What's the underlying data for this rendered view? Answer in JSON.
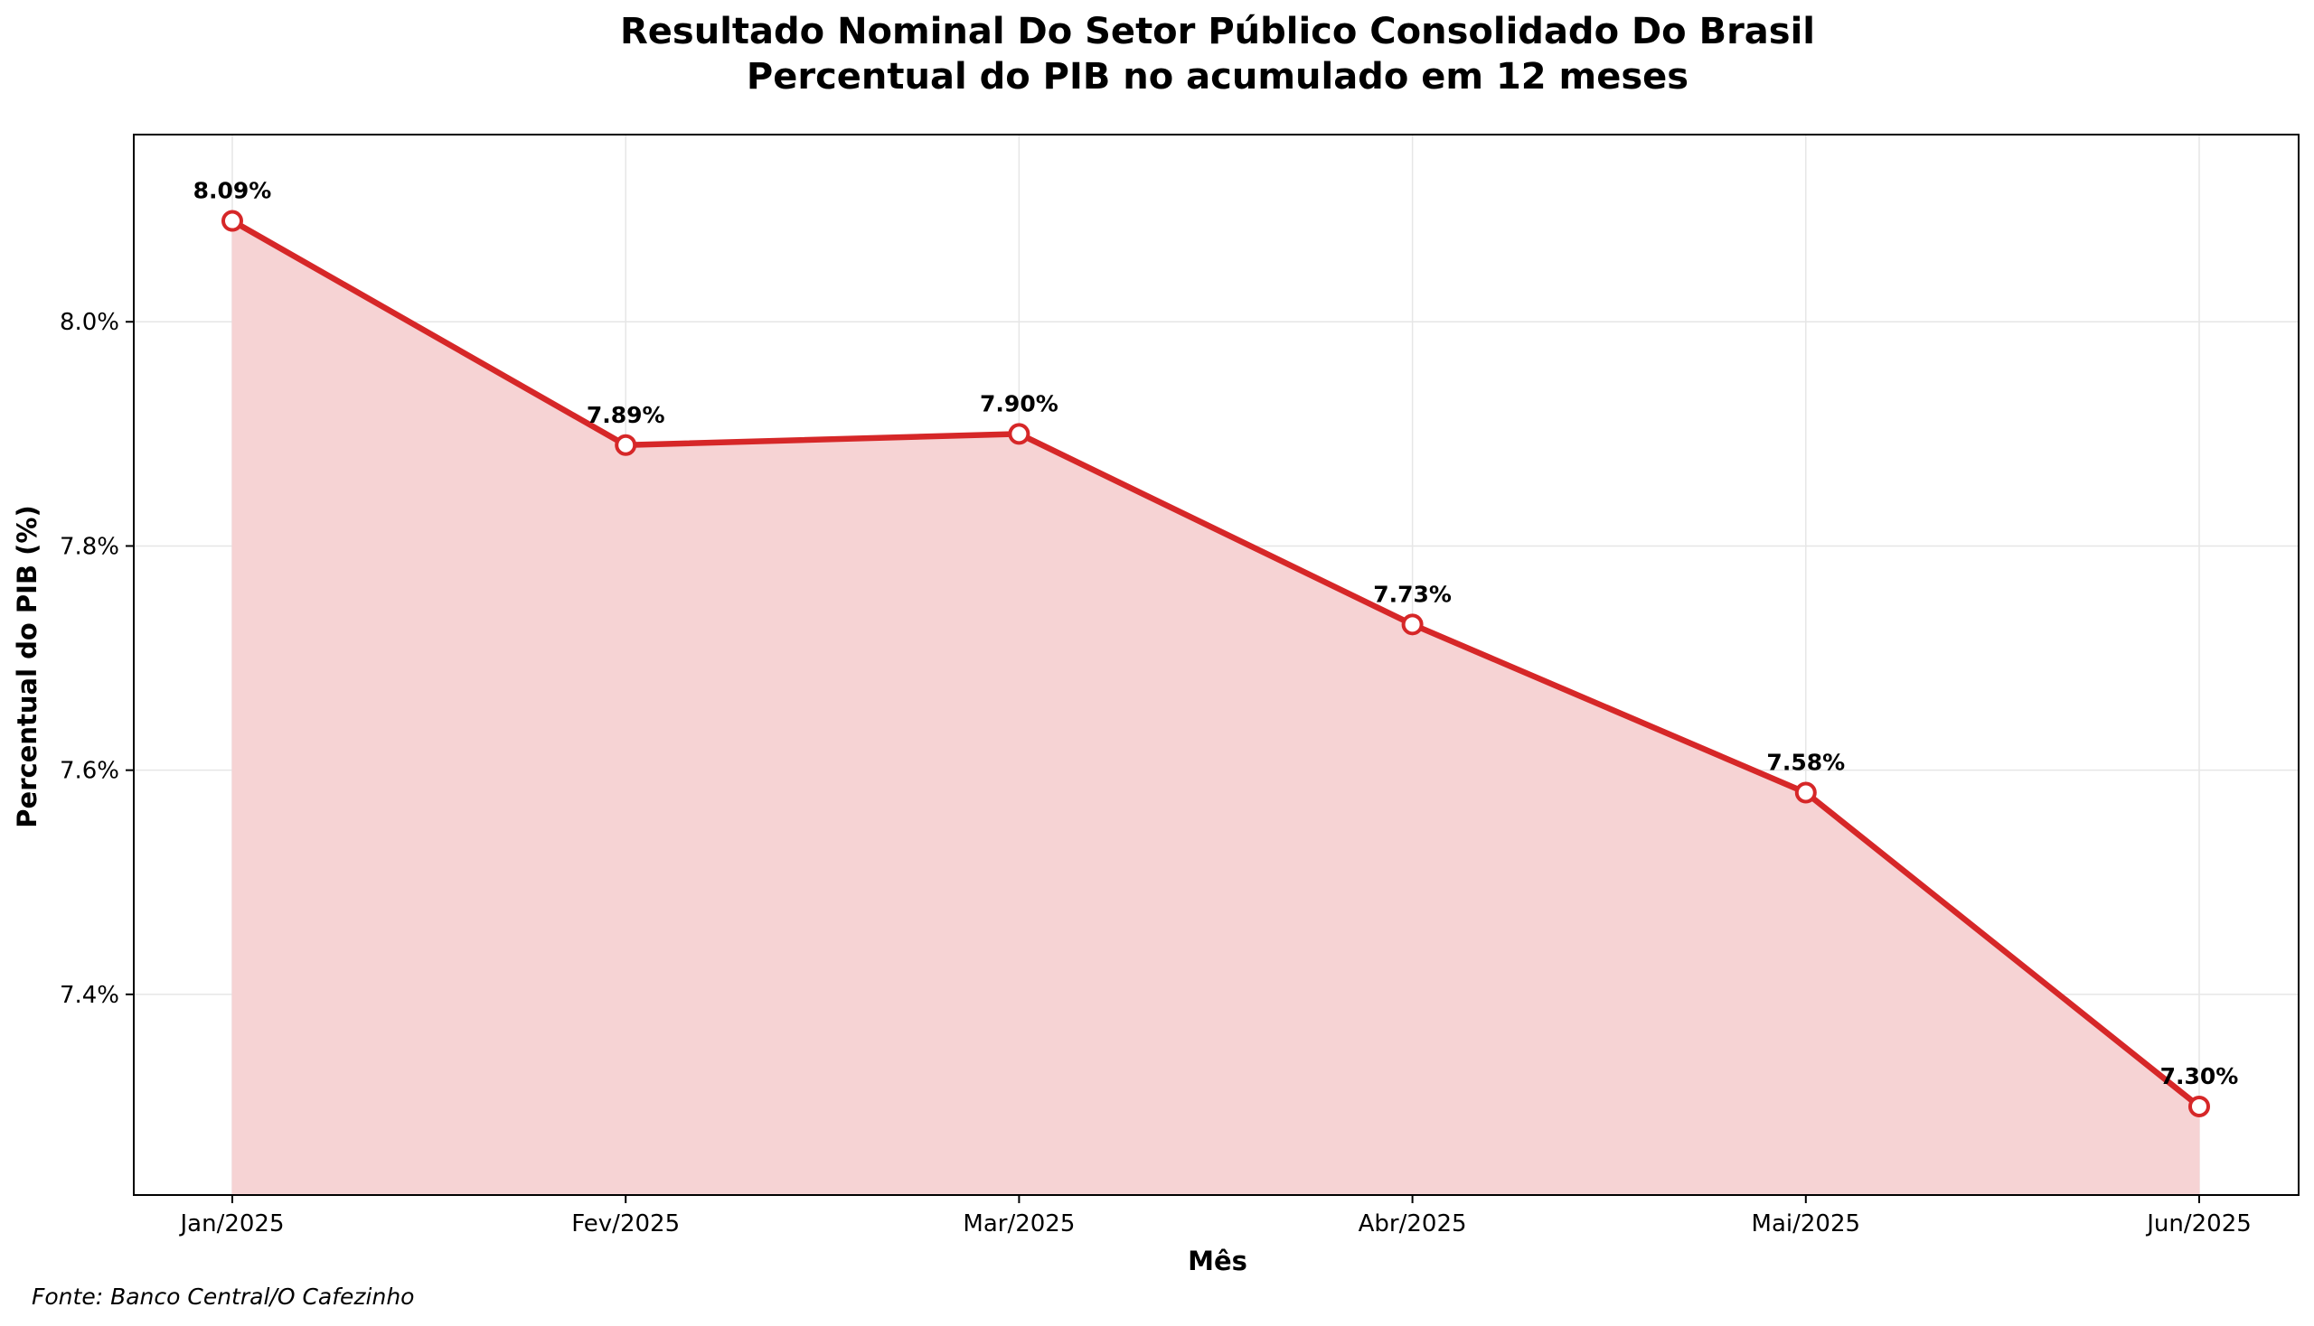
{
  "chart_data": {
    "type": "area",
    "title": "Resultado Nominal Do Setor Público Consolidado Do Brasil",
    "subtitle": "Percentual do PIB no acumulado em 12 meses",
    "xlabel": "Mês",
    "ylabel": "Percentual do PIB (%)",
    "categories": [
      "Jan/2025",
      "Fev/2025",
      "Mar/2025",
      "Abr/2025",
      "Mai/2025",
      "Jun/2025"
    ],
    "values": [
      8.09,
      7.89,
      7.9,
      7.73,
      7.58,
      7.3
    ],
    "data_labels": [
      "8.09%",
      "7.89%",
      "7.90%",
      "7.73%",
      "7.58%",
      "7.30%"
    ],
    "ylim": [
      7.221,
      8.167
    ],
    "yticks": [
      7.4,
      7.6,
      7.8,
      8.0
    ],
    "ytick_labels": [
      "7.4%",
      "7.6%",
      "7.8%",
      "8.0%"
    ],
    "grid": true,
    "legend": "none",
    "source": "Fonte: Banco Central/O Cafezinho",
    "colors": {
      "line": "#d62728",
      "fill": "#f6d3d4",
      "marker_fill": "#ffffff",
      "grid": "#e6e6e6",
      "axes": "#000000"
    }
  }
}
